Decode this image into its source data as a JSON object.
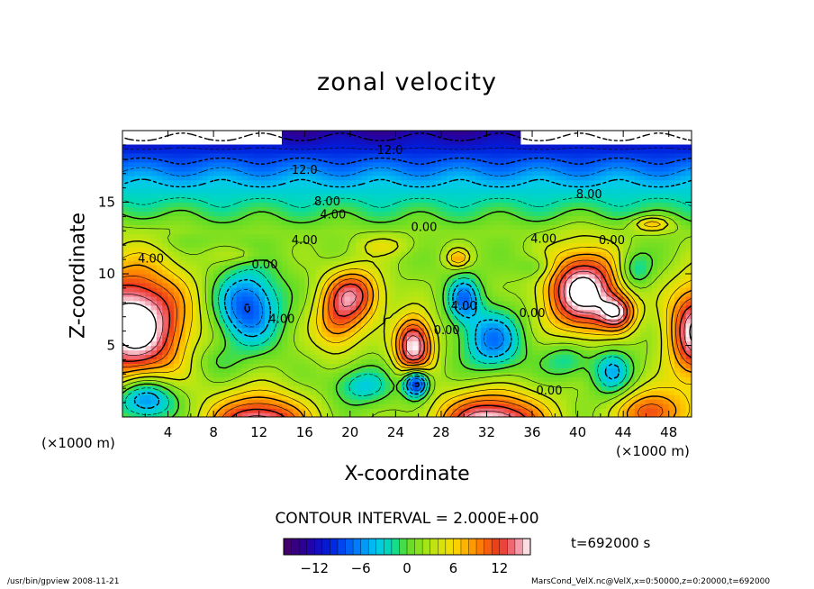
{
  "chart_data": {
    "type": "heatmap",
    "title": "zonal velocity",
    "xlabel": "X-coordinate",
    "ylabel": "Z-coordinate",
    "x_unit": "(×1000 m)",
    "y_unit": "(×1000 m)",
    "xlim": [
      0,
      50
    ],
    "ylim": [
      0,
      20
    ],
    "x_ticks": [
      "4",
      "8",
      "12",
      "16",
      "20",
      "24",
      "28",
      "32",
      "36",
      "40",
      "44",
      "48"
    ],
    "y_ticks": [
      "5",
      "10",
      "15"
    ],
    "contour_interval": "CONTOUR INTERVAL = 2.000E+00",
    "time": "t=692000 s",
    "colorbar": {
      "range": [
        -16,
        16
      ],
      "ticks": [
        "−12",
        "−6",
        "0",
        "6",
        "12"
      ]
    },
    "contour_labels": [
      {
        "text": "12.0",
        "x": 23.5,
        "y": 18.6
      },
      {
        "text": "12.0",
        "x": 16.0,
        "y": 17.2
      },
      {
        "text": "8.00",
        "x": 18.0,
        "y": 15.0
      },
      {
        "text": "4.00",
        "x": 18.5,
        "y": 14.1
      },
      {
        "text": "8.00",
        "x": 41.0,
        "y": 15.5
      },
      {
        "text": "0.00",
        "x": 26.5,
        "y": 13.2
      },
      {
        "text": "4.00",
        "x": 16.0,
        "y": 12.3
      },
      {
        "text": "4.00",
        "x": 37.0,
        "y": 12.4
      },
      {
        "text": "0.00",
        "x": 43.0,
        "y": 12.3
      },
      {
        "text": "4.00",
        "x": 2.5,
        "y": 11.0
      },
      {
        "text": "0.00",
        "x": 12.5,
        "y": 10.6
      },
      {
        "text": "4.00",
        "x": 14.0,
        "y": 6.8
      },
      {
        "text": "4.00",
        "x": 30.0,
        "y": 7.7
      },
      {
        "text": "0.00",
        "x": 28.5,
        "y": 6.0
      },
      {
        "text": "0.00",
        "x": 36.0,
        "y": 7.2
      },
      {
        "text": "0.00",
        "x": 37.5,
        "y": 1.8
      }
    ],
    "blobs": [
      {
        "x": 1.0,
        "y": 6.5,
        "rx": 5.5,
        "ry": 4.8,
        "v": 17
      },
      {
        "x": 11.0,
        "y": 7.7,
        "rx": 3.2,
        "ry": 3.0,
        "v": -10
      },
      {
        "x": 20.3,
        "y": 8.6,
        "rx": 3.0,
        "ry": 2.2,
        "v": 11
      },
      {
        "x": 18.8,
        "y": 6.4,
        "rx": 2.6,
        "ry": 2.4,
        "v": 7
      },
      {
        "x": 25.6,
        "y": 5.0,
        "rx": 2.0,
        "ry": 2.4,
        "v": 15
      },
      {
        "x": 25.8,
        "y": 2.4,
        "rx": 1.3,
        "ry": 1.2,
        "v": -14
      },
      {
        "x": 30.0,
        "y": 8.3,
        "rx": 1.6,
        "ry": 1.8,
        "v": -8
      },
      {
        "x": 32.5,
        "y": 5.4,
        "rx": 3.0,
        "ry": 2.5,
        "v": -8
      },
      {
        "x": 40.5,
        "y": 8.8,
        "rx": 4.0,
        "ry": 3.4,
        "v": 16
      },
      {
        "x": 43.5,
        "y": 7.3,
        "rx": 1.8,
        "ry": 1.4,
        "v": 10
      },
      {
        "x": 50.5,
        "y": 6.0,
        "rx": 3.0,
        "ry": 4.0,
        "v": 15
      },
      {
        "x": 12.0,
        "y": -0.7,
        "rx": 5.0,
        "ry": 2.7,
        "v": 15
      },
      {
        "x": 32.5,
        "y": -0.6,
        "rx": 5.5,
        "ry": 2.7,
        "v": 16
      },
      {
        "x": 46.5,
        "y": 0.3,
        "rx": 3.6,
        "ry": 2.0,
        "v": 10
      },
      {
        "x": 2.0,
        "y": 1.3,
        "rx": 3.2,
        "ry": 1.8,
        "v": -10
      },
      {
        "x": 43.0,
        "y": 3.2,
        "rx": 2.0,
        "ry": 2.0,
        "v": -6
      },
      {
        "x": 21.0,
        "y": 2.2,
        "rx": 3.0,
        "ry": 1.5,
        "v": -5
      },
      {
        "x": 29.5,
        "y": 11.1,
        "rx": 1.2,
        "ry": 0.8,
        "v": 6
      },
      {
        "x": 45.0,
        "y": 10.3,
        "rx": 1.8,
        "ry": 1.6,
        "v": -5
      },
      {
        "x": 10.5,
        "y": 11.3,
        "rx": 2.5,
        "ry": 0.7,
        "v": 2
      },
      {
        "x": 46.5,
        "y": 13.5,
        "rx": 2.0,
        "ry": 0.6,
        "v": 6
      },
      {
        "x": 6.0,
        "y": 12.3,
        "rx": 4.0,
        "ry": 0.8,
        "v": -1
      },
      {
        "x": 23.0,
        "y": 12.0,
        "rx": 3.0,
        "ry": 0.9,
        "v": 3
      },
      {
        "x": 36.5,
        "y": 10.5,
        "rx": 2.0,
        "ry": 1.0,
        "v": -3
      },
      {
        "x": 8.0,
        "y": 4.0,
        "rx": 3.0,
        "ry": 1.5,
        "v": -2
      },
      {
        "x": 39.0,
        "y": 4.0,
        "rx": 2.5,
        "ry": 1.5,
        "v": -4
      }
    ]
  },
  "footer": {
    "left": "/usr/bin/gpview  2008-11-21",
    "right": "MarsCond_VelX.nc@VelX,x=0:50000,z=0:20000,t=692000"
  }
}
